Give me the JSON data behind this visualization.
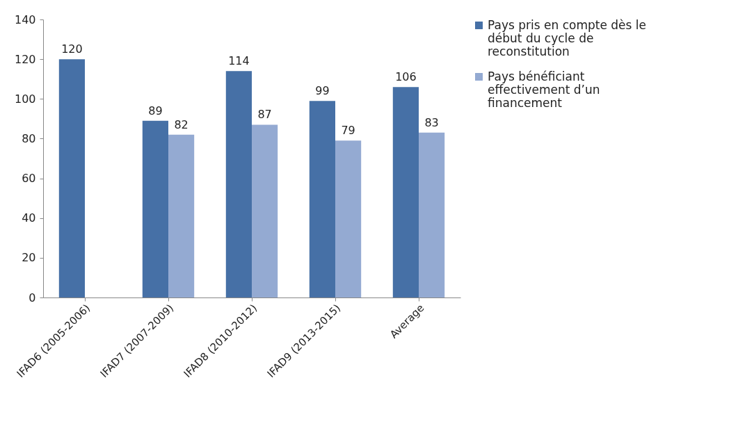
{
  "chart_data": {
    "type": "bar",
    "categories": [
      "IFAD6 (2005-2006)",
      "IFAD7 (2007-2009)",
      "IFAD8 (2010-2012)",
      "IFAD9 (2013-2015)",
      "Average"
    ],
    "series": [
      {
        "name": "Pays pris en compte dès le début du cycle de reconstitution",
        "color": "#4670a6",
        "values": [
          120,
          89,
          114,
          99,
          106
        ]
      },
      {
        "name": "Pays bénéficiant effectivement d’un financement",
        "color": "#94aad2",
        "values": [
          null,
          82,
          87,
          79,
          83
        ]
      }
    ],
    "ylim": [
      0,
      140
    ],
    "yticks": [
      0,
      20,
      40,
      60,
      80,
      100,
      120,
      140
    ],
    "grid": false,
    "legend": "right",
    "data_labels": true
  }
}
